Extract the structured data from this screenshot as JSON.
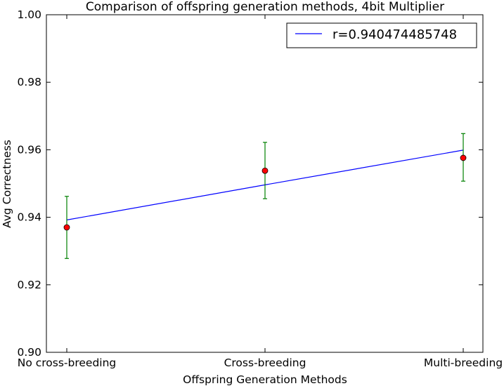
{
  "chart_data": {
    "type": "scatter",
    "title": "Comparison of offspring generation methods, 4bit Multiplier",
    "xlabel": "Offspring Generation Methods",
    "ylabel": "Avg Correctness",
    "categories": [
      "No cross-breeding",
      "Cross-breeding",
      "Multi-breeding"
    ],
    "ylim": [
      0.9,
      1.0
    ],
    "yticks": [
      "0.90",
      "0.92",
      "0.94",
      "0.96",
      "0.98",
      "1.00"
    ],
    "grid": false,
    "legend_position": "top-right",
    "points": {
      "values": [
        0.937,
        0.9538,
        0.9576
      ],
      "err_low": [
        0.9278,
        0.9455,
        0.9507
      ],
      "err_high": [
        0.9462,
        0.9622,
        0.9648
      ],
      "marker_color": "#ff0000",
      "error_color": "#008000"
    },
    "fit_line": {
      "name": "r=0.940474485748",
      "values": [
        0.9392,
        0.9496,
        0.9599
      ],
      "color": "#0000ff"
    }
  }
}
